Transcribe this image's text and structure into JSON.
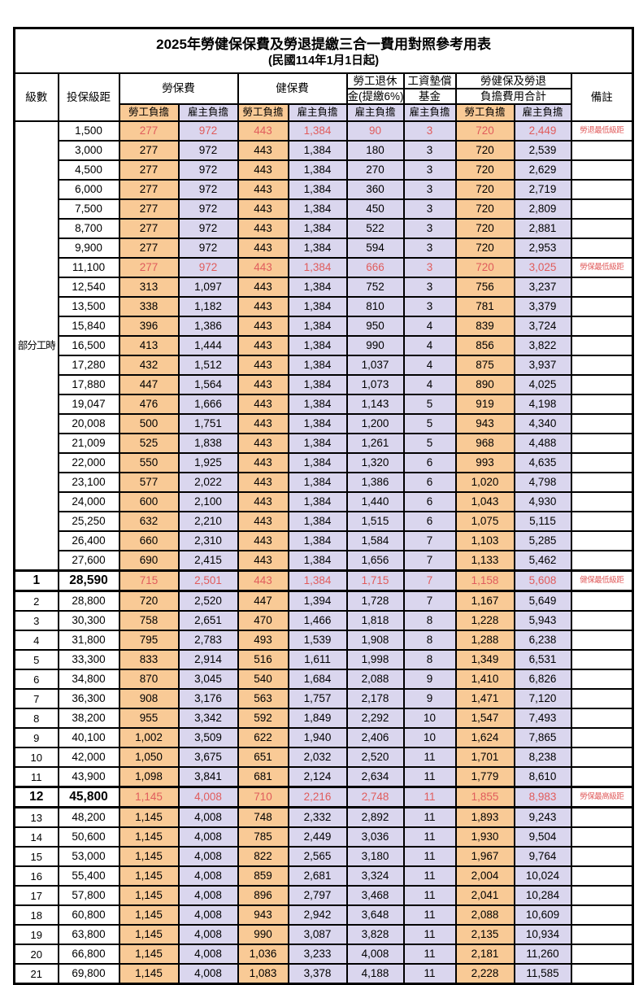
{
  "page": {
    "title": "2025年勞健保保費及勞退提繳三合一費用對照參考用表",
    "subtitle": "(民國114年1月1日起)"
  },
  "colors": {
    "employee_bg": "#F9CA96",
    "employer_bg": "#DAD6EE",
    "highlight_text": "#E05C5C",
    "border": "#000000"
  },
  "header": {
    "level": "級數",
    "bracket": "投保級距",
    "labor_fee": "勞保費",
    "health_fee": "健保費",
    "pension_line1": "勞工退休",
    "pension_line2": "金(提繳6%)",
    "wage_fund_line1": "工資墊償",
    "wage_fund_line2": "基金",
    "total_line1": "勞健保及勞退",
    "total_line2": "負擔費用合計",
    "remark": "備註",
    "employee": "勞工負擔",
    "employer": "雇主負擔"
  },
  "part_time_label": "部分工時",
  "part_time_span": 23,
  "rows": [
    {
      "level": "",
      "bracket": "1,500",
      "cells": [
        "277",
        "972",
        "443",
        "1,384",
        "90",
        "3",
        "720",
        "2,449"
      ],
      "remark": "勞退最低級距",
      "red": true,
      "emph": false
    },
    {
      "level": "",
      "bracket": "3,000",
      "cells": [
        "277",
        "972",
        "443",
        "1,384",
        "180",
        "3",
        "720",
        "2,539"
      ],
      "remark": "",
      "red": false,
      "emph": false
    },
    {
      "level": "",
      "bracket": "4,500",
      "cells": [
        "277",
        "972",
        "443",
        "1,384",
        "270",
        "3",
        "720",
        "2,629"
      ],
      "remark": "",
      "red": false,
      "emph": false
    },
    {
      "level": "",
      "bracket": "6,000",
      "cells": [
        "277",
        "972",
        "443",
        "1,384",
        "360",
        "3",
        "720",
        "2,719"
      ],
      "remark": "",
      "red": false,
      "emph": false
    },
    {
      "level": "",
      "bracket": "7,500",
      "cells": [
        "277",
        "972",
        "443",
        "1,384",
        "450",
        "3",
        "720",
        "2,809"
      ],
      "remark": "",
      "red": false,
      "emph": false
    },
    {
      "level": "",
      "bracket": "8,700",
      "cells": [
        "277",
        "972",
        "443",
        "1,384",
        "522",
        "3",
        "720",
        "2,881"
      ],
      "remark": "",
      "red": false,
      "emph": false
    },
    {
      "level": "",
      "bracket": "9,900",
      "cells": [
        "277",
        "972",
        "443",
        "1,384",
        "594",
        "3",
        "720",
        "2,953"
      ],
      "remark": "",
      "red": false,
      "emph": false
    },
    {
      "level": "",
      "bracket": "11,100",
      "cells": [
        "277",
        "972",
        "443",
        "1,384",
        "666",
        "3",
        "720",
        "3,025"
      ],
      "remark": "勞保最低級距",
      "red": true,
      "emph": false
    },
    {
      "level": "",
      "bracket": "12,540",
      "cells": [
        "313",
        "1,097",
        "443",
        "1,384",
        "752",
        "3",
        "756",
        "3,237"
      ],
      "remark": "",
      "red": false,
      "emph": false
    },
    {
      "level": "",
      "bracket": "13,500",
      "cells": [
        "338",
        "1,182",
        "443",
        "1,384",
        "810",
        "3",
        "781",
        "3,379"
      ],
      "remark": "",
      "red": false,
      "emph": false
    },
    {
      "level": "",
      "bracket": "15,840",
      "cells": [
        "396",
        "1,386",
        "443",
        "1,384",
        "950",
        "4",
        "839",
        "3,724"
      ],
      "remark": "",
      "red": false,
      "emph": false
    },
    {
      "level": "",
      "bracket": "16,500",
      "cells": [
        "413",
        "1,444",
        "443",
        "1,384",
        "990",
        "4",
        "856",
        "3,822"
      ],
      "remark": "",
      "red": false,
      "emph": false
    },
    {
      "level": "",
      "bracket": "17,280",
      "cells": [
        "432",
        "1,512",
        "443",
        "1,384",
        "1,037",
        "4",
        "875",
        "3,937"
      ],
      "remark": "",
      "red": false,
      "emph": false
    },
    {
      "level": "",
      "bracket": "17,880",
      "cells": [
        "447",
        "1,564",
        "443",
        "1,384",
        "1,073",
        "4",
        "890",
        "4,025"
      ],
      "remark": "",
      "red": false,
      "emph": false
    },
    {
      "level": "",
      "bracket": "19,047",
      "cells": [
        "476",
        "1,666",
        "443",
        "1,384",
        "1,143",
        "5",
        "919",
        "4,198"
      ],
      "remark": "",
      "red": false,
      "emph": false
    },
    {
      "level": "",
      "bracket": "20,008",
      "cells": [
        "500",
        "1,751",
        "443",
        "1,384",
        "1,200",
        "5",
        "943",
        "4,340"
      ],
      "remark": "",
      "red": false,
      "emph": false
    },
    {
      "level": "",
      "bracket": "21,009",
      "cells": [
        "525",
        "1,838",
        "443",
        "1,384",
        "1,261",
        "5",
        "968",
        "4,488"
      ],
      "remark": "",
      "red": false,
      "emph": false
    },
    {
      "level": "",
      "bracket": "22,000",
      "cells": [
        "550",
        "1,925",
        "443",
        "1,384",
        "1,320",
        "6",
        "993",
        "4,635"
      ],
      "remark": "",
      "red": false,
      "emph": false
    },
    {
      "level": "",
      "bracket": "23,100",
      "cells": [
        "577",
        "2,022",
        "443",
        "1,384",
        "1,386",
        "6",
        "1,020",
        "4,798"
      ],
      "remark": "",
      "red": false,
      "emph": false
    },
    {
      "level": "",
      "bracket": "24,000",
      "cells": [
        "600",
        "2,100",
        "443",
        "1,384",
        "1,440",
        "6",
        "1,043",
        "4,930"
      ],
      "remark": "",
      "red": false,
      "emph": false
    },
    {
      "level": "",
      "bracket": "25,250",
      "cells": [
        "632",
        "2,210",
        "443",
        "1,384",
        "1,515",
        "6",
        "1,075",
        "5,115"
      ],
      "remark": "",
      "red": false,
      "emph": false
    },
    {
      "level": "",
      "bracket": "26,400",
      "cells": [
        "660",
        "2,310",
        "443",
        "1,384",
        "1,584",
        "7",
        "1,103",
        "5,285"
      ],
      "remark": "",
      "red": false,
      "emph": false
    },
    {
      "level": "",
      "bracket": "27,600",
      "cells": [
        "690",
        "2,415",
        "443",
        "1,384",
        "1,656",
        "7",
        "1,133",
        "5,462"
      ],
      "remark": "",
      "red": false,
      "emph": false
    },
    {
      "level": "1",
      "bracket": "28,590",
      "cells": [
        "715",
        "2,501",
        "443",
        "1,384",
        "1,715",
        "7",
        "1,158",
        "5,608"
      ],
      "remark": "健保最低級距",
      "red": true,
      "emph": true
    },
    {
      "level": "2",
      "bracket": "28,800",
      "cells": [
        "720",
        "2,520",
        "447",
        "1,394",
        "1,728",
        "7",
        "1,167",
        "5,649"
      ],
      "remark": "",
      "red": false,
      "emph": false
    },
    {
      "level": "3",
      "bracket": "30,300",
      "cells": [
        "758",
        "2,651",
        "470",
        "1,466",
        "1,818",
        "8",
        "1,228",
        "5,943"
      ],
      "remark": "",
      "red": false,
      "emph": false
    },
    {
      "level": "4",
      "bracket": "31,800",
      "cells": [
        "795",
        "2,783",
        "493",
        "1,539",
        "1,908",
        "8",
        "1,288",
        "6,238"
      ],
      "remark": "",
      "red": false,
      "emph": false
    },
    {
      "level": "5",
      "bracket": "33,300",
      "cells": [
        "833",
        "2,914",
        "516",
        "1,611",
        "1,998",
        "8",
        "1,349",
        "6,531"
      ],
      "remark": "",
      "red": false,
      "emph": false
    },
    {
      "level": "6",
      "bracket": "34,800",
      "cells": [
        "870",
        "3,045",
        "540",
        "1,684",
        "2,088",
        "9",
        "1,410",
        "6,826"
      ],
      "remark": "",
      "red": false,
      "emph": false
    },
    {
      "level": "7",
      "bracket": "36,300",
      "cells": [
        "908",
        "3,176",
        "563",
        "1,757",
        "2,178",
        "9",
        "1,471",
        "7,120"
      ],
      "remark": "",
      "red": false,
      "emph": false
    },
    {
      "level": "8",
      "bracket": "38,200",
      "cells": [
        "955",
        "3,342",
        "592",
        "1,849",
        "2,292",
        "10",
        "1,547",
        "7,493"
      ],
      "remark": "",
      "red": false,
      "emph": false
    },
    {
      "level": "9",
      "bracket": "40,100",
      "cells": [
        "1,002",
        "3,509",
        "622",
        "1,940",
        "2,406",
        "10",
        "1,624",
        "7,865"
      ],
      "remark": "",
      "red": false,
      "emph": false
    },
    {
      "level": "10",
      "bracket": "42,000",
      "cells": [
        "1,050",
        "3,675",
        "651",
        "2,032",
        "2,520",
        "11",
        "1,701",
        "8,238"
      ],
      "remark": "",
      "red": false,
      "emph": false
    },
    {
      "level": "11",
      "bracket": "43,900",
      "cells": [
        "1,098",
        "3,841",
        "681",
        "2,124",
        "2,634",
        "11",
        "1,779",
        "8,610"
      ],
      "remark": "",
      "red": false,
      "emph": false
    },
    {
      "level": "12",
      "bracket": "45,800",
      "cells": [
        "1,145",
        "4,008",
        "710",
        "2,216",
        "2,748",
        "11",
        "1,855",
        "8,983"
      ],
      "remark": "勞保最高級距",
      "red": true,
      "emph": true
    },
    {
      "level": "13",
      "bracket": "48,200",
      "cells": [
        "1,145",
        "4,008",
        "748",
        "2,332",
        "2,892",
        "11",
        "1,893",
        "9,243"
      ],
      "remark": "",
      "red": false,
      "emph": false
    },
    {
      "level": "14",
      "bracket": "50,600",
      "cells": [
        "1,145",
        "4,008",
        "785",
        "2,449",
        "3,036",
        "11",
        "1,930",
        "9,504"
      ],
      "remark": "",
      "red": false,
      "emph": false
    },
    {
      "level": "15",
      "bracket": "53,000",
      "cells": [
        "1,145",
        "4,008",
        "822",
        "2,565",
        "3,180",
        "11",
        "1,967",
        "9,764"
      ],
      "remark": "",
      "red": false,
      "emph": false
    },
    {
      "level": "16",
      "bracket": "55,400",
      "cells": [
        "1,145",
        "4,008",
        "859",
        "2,681",
        "3,324",
        "11",
        "2,004",
        "10,024"
      ],
      "remark": "",
      "red": false,
      "emph": false
    },
    {
      "level": "17",
      "bracket": "57,800",
      "cells": [
        "1,145",
        "4,008",
        "896",
        "2,797",
        "3,468",
        "11",
        "2,041",
        "10,284"
      ],
      "remark": "",
      "red": false,
      "emph": false
    },
    {
      "level": "18",
      "bracket": "60,800",
      "cells": [
        "1,145",
        "4,008",
        "943",
        "2,942",
        "3,648",
        "11",
        "2,088",
        "10,609"
      ],
      "remark": "",
      "red": false,
      "emph": false
    },
    {
      "level": "19",
      "bracket": "63,800",
      "cells": [
        "1,145",
        "4,008",
        "990",
        "3,087",
        "3,828",
        "11",
        "2,135",
        "10,934"
      ],
      "remark": "",
      "red": false,
      "emph": false
    },
    {
      "level": "20",
      "bracket": "66,800",
      "cells": [
        "1,145",
        "4,008",
        "1,036",
        "3,233",
        "4,008",
        "11",
        "2,181",
        "11,260"
      ],
      "remark": "",
      "red": false,
      "emph": false
    },
    {
      "level": "21",
      "bracket": "69,800",
      "cells": [
        "1,145",
        "4,008",
        "1,083",
        "3,378",
        "4,188",
        "11",
        "2,228",
        "11,585"
      ],
      "remark": "",
      "red": false,
      "emph": false
    }
  ],
  "column_kinds": [
    "employee",
    "employer",
    "employee",
    "employer",
    "employer",
    "employer",
    "employee",
    "employer"
  ]
}
